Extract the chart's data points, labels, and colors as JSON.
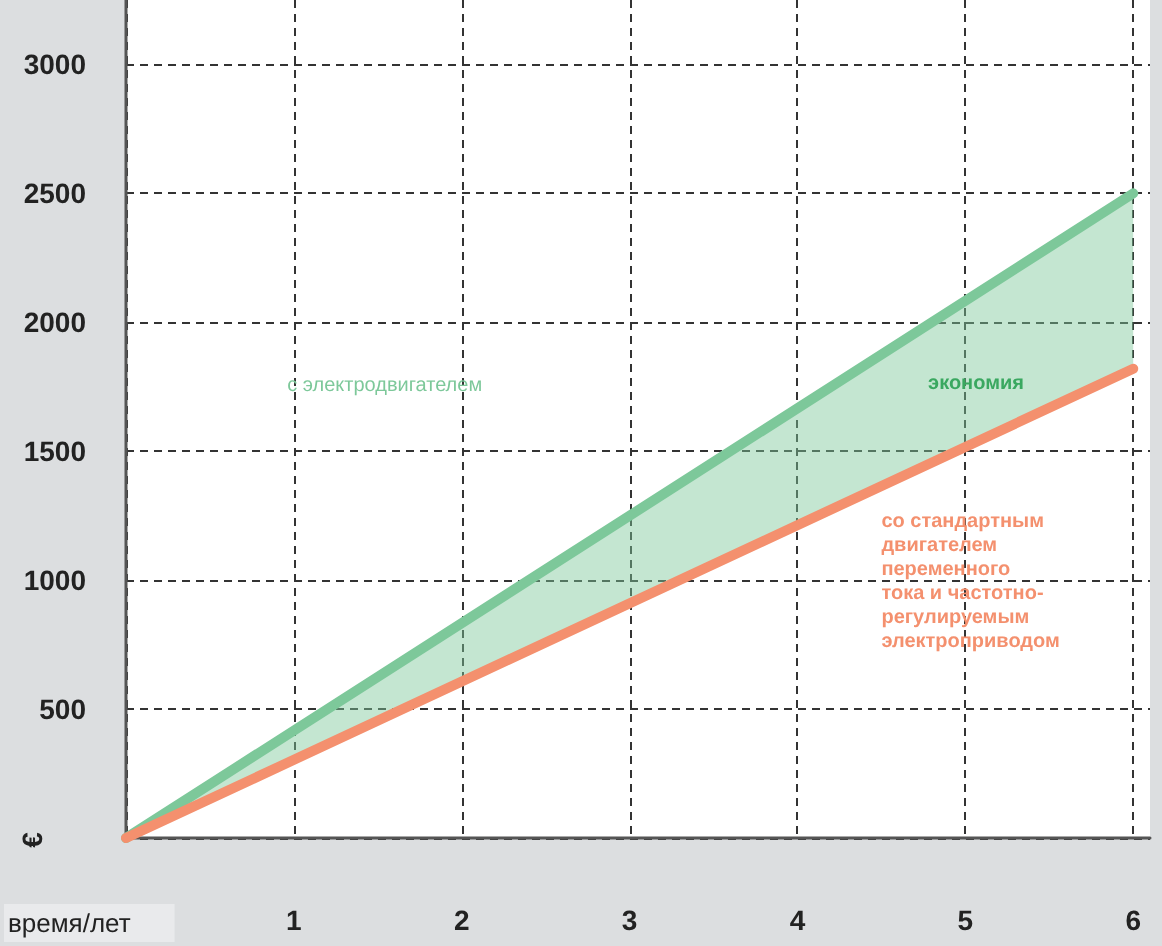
{
  "chart_data": {
    "type": "line",
    "xlabel": "время/лет",
    "ylabel": "€",
    "x": [
      0,
      6
    ],
    "series": [
      {
        "name": "с электродвигателем",
        "color": "#7dc89a",
        "values": [
          0,
          2500
        ],
        "lower": [
          0,
          1820
        ],
        "upper": [
          0,
          2500
        ]
      },
      {
        "name": "со стандартным двигателем переменного тока и частотно-регулируемым электроприводом",
        "color": "#f4906e",
        "values": [
          0,
          1820
        ]
      }
    ],
    "annotations": [
      "экономия"
    ],
    "xlim": [
      0,
      6.1
    ],
    "xticks": [
      {
        "value": 0,
        "label": null
      },
      1,
      2,
      3,
      4,
      5,
      6
    ],
    "ylim": [
      0,
      3250
    ],
    "yticks": [
      {
        "value": 0,
        "label": null
      },
      500,
      1000,
      1500,
      2000,
      2500,
      3000
    ],
    "grid": true,
    "legend": false,
    "marker": "none",
    "line_style": "solid"
  }
}
